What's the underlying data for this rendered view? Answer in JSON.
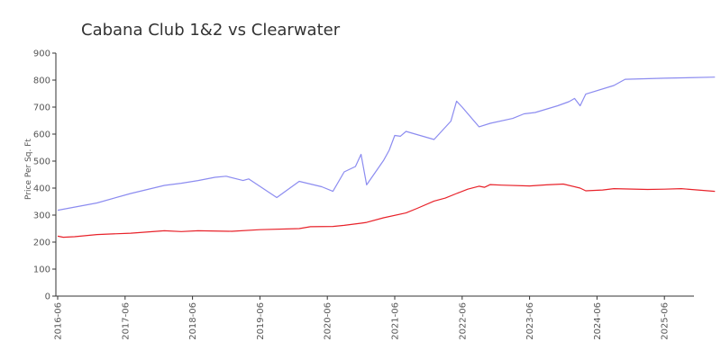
{
  "chart_data": {
    "type": "line",
    "title": "Cabana Club 1&2 vs Clearwater",
    "xlabel": "",
    "ylabel": "Price Per Sq. Ft",
    "ylim": [
      0,
      900
    ],
    "yticks": [
      0,
      100,
      200,
      300,
      400,
      500,
      600,
      700,
      800,
      900
    ],
    "xlim": [
      "2016-06",
      "2026-03"
    ],
    "xticks": [
      "2016-06",
      "2017-06",
      "2018-06",
      "2019-06",
      "2020-06",
      "2021-06",
      "2022-06",
      "2023-06",
      "2024-06",
      "2025-06"
    ],
    "grid": false,
    "legend": "none",
    "series": [
      {
        "color": "#8c8cf0",
        "points": [
          [
            "2016-06",
            318
          ],
          [
            "2017-01",
            345
          ],
          [
            "2017-07",
            380
          ],
          [
            "2018-01",
            410
          ],
          [
            "2018-04",
            418
          ],
          [
            "2018-07",
            428
          ],
          [
            "2018-10",
            440
          ],
          [
            "2018-12",
            444
          ],
          [
            "2019-03",
            428
          ],
          [
            "2019-04",
            434
          ],
          [
            "2019-09",
            365
          ],
          [
            "2020-01",
            425
          ],
          [
            "2020-05",
            405
          ],
          [
            "2020-07",
            388
          ],
          [
            "2020-09",
            460
          ],
          [
            "2020-11",
            480
          ],
          [
            "2020-12",
            525
          ],
          [
            "2021-01",
            412
          ],
          [
            "2021-04",
            502
          ],
          [
            "2021-05",
            540
          ],
          [
            "2021-06",
            595
          ],
          [
            "2021-07",
            592
          ],
          [
            "2021-08",
            610
          ],
          [
            "2022-01",
            580
          ],
          [
            "2022-04",
            648
          ],
          [
            "2022-05",
            722
          ],
          [
            "2022-06",
            700
          ],
          [
            "2022-09",
            627
          ],
          [
            "2022-11",
            640
          ],
          [
            "2023-03",
            658
          ],
          [
            "2023-05",
            675
          ],
          [
            "2023-07",
            680
          ],
          [
            "2023-11",
            705
          ],
          [
            "2024-01",
            720
          ],
          [
            "2024-02",
            732
          ],
          [
            "2024-03",
            705
          ],
          [
            "2024-04",
            748
          ],
          [
            "2024-09",
            780
          ],
          [
            "2024-11",
            803
          ],
          [
            "2025-06",
            807
          ],
          [
            "2026-03",
            811
          ]
        ]
      },
      {
        "color": "#e8222a",
        "points": [
          [
            "2016-06",
            222
          ],
          [
            "2016-07",
            218
          ],
          [
            "2016-09",
            220
          ],
          [
            "2017-01",
            228
          ],
          [
            "2017-07",
            233
          ],
          [
            "2018-01",
            242
          ],
          [
            "2018-04",
            239
          ],
          [
            "2018-07",
            242
          ],
          [
            "2019-01",
            240
          ],
          [
            "2019-06",
            246
          ],
          [
            "2020-01",
            250
          ],
          [
            "2020-03",
            257
          ],
          [
            "2020-07",
            258
          ],
          [
            "2020-09",
            262
          ],
          [
            "2020-12",
            270
          ],
          [
            "2021-01",
            273
          ],
          [
            "2021-04",
            290
          ],
          [
            "2021-08",
            308
          ],
          [
            "2021-10",
            325
          ],
          [
            "2022-01",
            352
          ],
          [
            "2022-03",
            363
          ],
          [
            "2022-05",
            380
          ],
          [
            "2022-07",
            396
          ],
          [
            "2022-09",
            407
          ],
          [
            "2022-10",
            403
          ],
          [
            "2022-11",
            413
          ],
          [
            "2023-01",
            411
          ],
          [
            "2023-06",
            408
          ],
          [
            "2023-09",
            412
          ],
          [
            "2023-12",
            415
          ],
          [
            "2024-03",
            400
          ],
          [
            "2024-04",
            390
          ],
          [
            "2024-07",
            393
          ],
          [
            "2024-09",
            398
          ],
          [
            "2025-03",
            395
          ],
          [
            "2025-06",
            396
          ],
          [
            "2025-09",
            398
          ],
          [
            "2026-03",
            388
          ]
        ]
      }
    ]
  }
}
